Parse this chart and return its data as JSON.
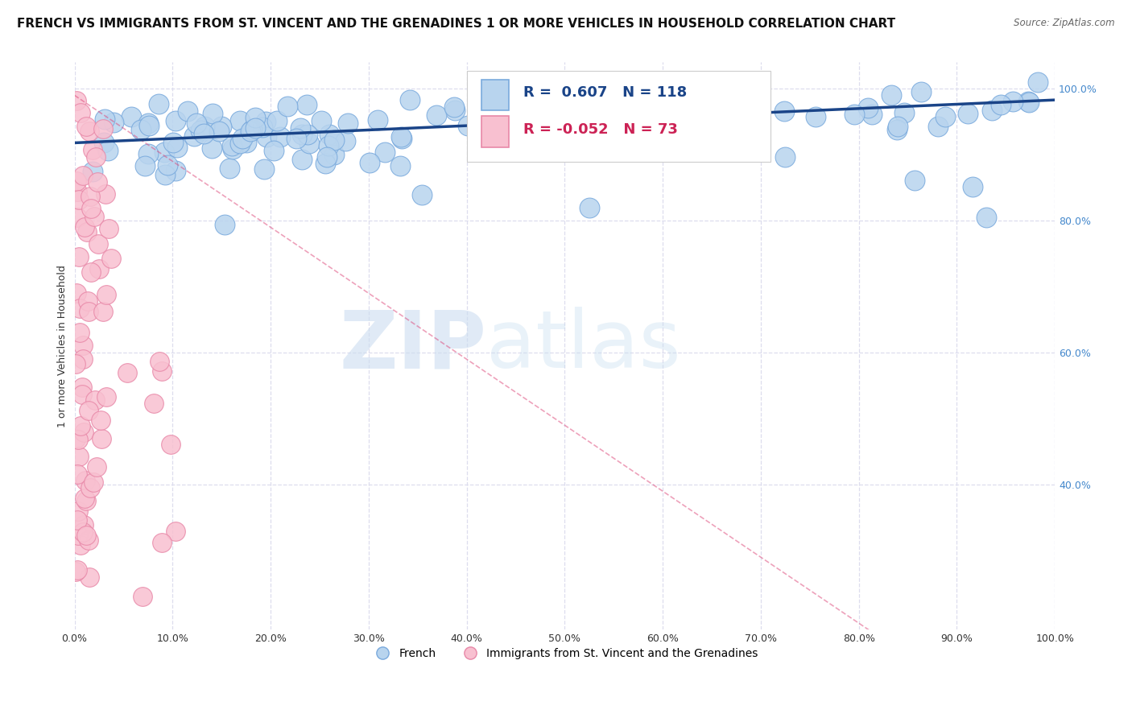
{
  "title": "FRENCH VS IMMIGRANTS FROM ST. VINCENT AND THE GRENADINES 1 OR MORE VEHICLES IN HOUSEHOLD CORRELATION CHART",
  "source": "Source: ZipAtlas.com",
  "ylabel": "1 or more Vehicles in Household",
  "watermark_zip": "ZIP",
  "watermark_atlas": "atlas",
  "legend_french_label": "French",
  "legend_immigrant_label": "Immigrants from St. Vincent and the Grenadines",
  "R_french": 0.607,
  "N_french": 118,
  "R_immigrant": -0.052,
  "N_immigrant": 73,
  "french_color": "#b8d4ee",
  "french_edge_color": "#7aaadd",
  "french_line_color": "#1a4488",
  "immigrant_color": "#f8c0d0",
  "immigrant_edge_color": "#e888a8",
  "immigrant_line_color": "#dd4477",
  "xlim": [
    0.0,
    1.0
  ],
  "ylim": [
    0.18,
    1.04
  ],
  "x_ticks": [
    0.0,
    0.1,
    0.2,
    0.3,
    0.4,
    0.5,
    0.6,
    0.7,
    0.8,
    0.9,
    1.0
  ],
  "y_ticks_right": [
    0.4,
    0.6,
    0.8,
    1.0
  ],
  "background_color": "#ffffff",
  "grid_color": "#ddddee",
  "title_fontsize": 11,
  "axis_label_fontsize": 9,
  "tick_fontsize": 9
}
